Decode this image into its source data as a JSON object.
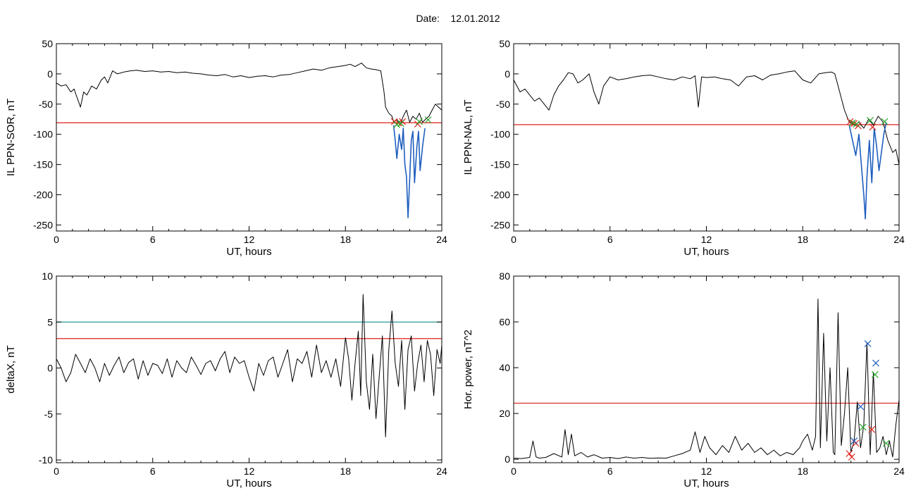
{
  "figure": {
    "date_label": "Date:",
    "date_value": "12.01.2012"
  },
  "chart_data": [
    {
      "id": "p1",
      "type": "line",
      "title": "",
      "xlabel": "UT, hours",
      "ylabel": "IL PPN-SOR, nT",
      "xlim": [
        0,
        24
      ],
      "ylim": [
        -260,
        50
      ],
      "xticks": [
        0,
        6,
        12,
        18,
        24
      ],
      "yticks": [
        50,
        0,
        -50,
        -100,
        -150,
        -200,
        -250
      ],
      "grid": false,
      "hlines": [
        {
          "y": -81,
          "color": "#e0201a"
        }
      ],
      "series": [
        {
          "color": "#000000",
          "x": [
            0,
            0.3,
            0.6,
            0.9,
            1.1,
            1.3,
            1.5,
            1.7,
            1.9,
            2.2,
            2.5,
            2.8,
            3.0,
            3.2,
            3.5,
            3.8,
            4.2,
            4.6,
            5.0,
            5.5,
            6.0,
            6.5,
            7.0,
            7.5,
            8.0,
            8.5,
            9.0,
            9.5,
            10.0,
            10.5,
            11.0,
            11.5,
            12.0,
            12.5,
            13.0,
            13.5,
            14.0,
            14.5,
            15.0,
            15.5,
            16.0,
            16.5,
            17.0,
            17.5,
            18.0,
            18.3,
            18.6,
            19.0,
            19.3,
            19.6,
            19.9,
            20.2,
            20.4,
            20.5,
            20.7,
            20.9,
            21.0,
            21.2,
            21.4,
            21.6,
            21.8,
            22.0,
            22.2,
            22.4,
            22.6,
            22.8,
            23.0,
            23.2,
            23.4,
            23.6,
            23.8,
            24.0
          ],
          "y": [
            -15,
            -20,
            -18,
            -30,
            -25,
            -40,
            -55,
            -30,
            -35,
            -20,
            -25,
            -10,
            -5,
            -15,
            5,
            0,
            3,
            5,
            6,
            4,
            5,
            3,
            4,
            2,
            3,
            1,
            0,
            -2,
            -3,
            -1,
            -5,
            -3,
            -6,
            -4,
            -3,
            -5,
            -2,
            -1,
            2,
            5,
            8,
            6,
            10,
            12,
            14,
            16,
            12,
            18,
            10,
            8,
            7,
            5,
            -30,
            -55,
            -65,
            -70,
            -80,
            -75,
            -85,
            -70,
            -60,
            -80,
            -70,
            -75,
            -65,
            -80,
            -75,
            -70,
            -60,
            -50,
            -55,
            -60
          ]
        },
        {
          "color": "#1f5fbf",
          "x": [
            21.0,
            21.1,
            21.2,
            21.35,
            21.5,
            21.6,
            21.7,
            21.8,
            21.9,
            22.0,
            22.1,
            22.2,
            22.3,
            22.45,
            22.55,
            22.65,
            22.8,
            22.95
          ],
          "y": [
            -85,
            -110,
            -140,
            -100,
            -125,
            -90,
            -150,
            -170,
            -238,
            -175,
            -110,
            -95,
            -180,
            -120,
            -95,
            -160,
            -120,
            -90
          ]
        }
      ],
      "markers": [
        {
          "x": 21.05,
          "y": -79,
          "color": "#e0201a"
        },
        {
          "x": 21.3,
          "y": -81,
          "color": "#e0201a"
        },
        {
          "x": 21.55,
          "y": -79,
          "color": "#e0201a"
        },
        {
          "x": 22.5,
          "y": -83,
          "color": "#e0201a"
        },
        {
          "x": 21.2,
          "y": -84,
          "color": "#2aa52a"
        },
        {
          "x": 21.45,
          "y": -82,
          "color": "#2aa52a"
        },
        {
          "x": 22.6,
          "y": -79,
          "color": "#2aa52a"
        },
        {
          "x": 23.15,
          "y": -76,
          "color": "#2aa52a"
        }
      ]
    },
    {
      "id": "p2",
      "type": "line",
      "title": "",
      "xlabel": "UT, hours",
      "ylabel": "IL PPN-NAL, nT",
      "xlim": [
        0,
        24
      ],
      "ylim": [
        -260,
        50
      ],
      "xticks": [
        0,
        6,
        12,
        18,
        24
      ],
      "yticks": [
        50,
        0,
        -50,
        -100,
        -150,
        -200,
        -250
      ],
      "grid": false,
      "hlines": [
        {
          "y": -84,
          "color": "#e0201a"
        }
      ],
      "series": [
        {
          "color": "#000000",
          "x": [
            0,
            0.2,
            0.4,
            0.7,
            1.0,
            1.3,
            1.6,
            1.9,
            2.2,
            2.5,
            2.8,
            3.1,
            3.4,
            3.7,
            4.0,
            4.3,
            4.7,
            5.0,
            5.3,
            5.6,
            6.0,
            6.5,
            7.0,
            7.5,
            8.0,
            8.5,
            9.0,
            9.5,
            10.0,
            10.5,
            11.0,
            11.3,
            11.5,
            11.7,
            12.0,
            12.5,
            13.0,
            13.5,
            14.0,
            14.5,
            15.0,
            15.5,
            16.0,
            16.5,
            17.0,
            17.5,
            18.0,
            18.5,
            19.0,
            19.4,
            19.8,
            20.0,
            20.3,
            20.6,
            20.9,
            21.2,
            21.5,
            21.8,
            22.1,
            22.4,
            22.7,
            23.0,
            23.3,
            23.6,
            23.8,
            24.0
          ],
          "y": [
            -10,
            -20,
            -30,
            -25,
            -35,
            -45,
            -40,
            -50,
            -60,
            -35,
            -20,
            -10,
            2,
            0,
            -15,
            -10,
            0,
            -30,
            -50,
            -20,
            -5,
            -10,
            -8,
            -5,
            -3,
            -2,
            -5,
            -8,
            -10,
            -5,
            -8,
            -3,
            -55,
            -5,
            -6,
            -5,
            -8,
            -10,
            -20,
            -5,
            -3,
            -10,
            -2,
            0,
            3,
            5,
            -10,
            -15,
            0,
            2,
            3,
            0,
            -30,
            -60,
            -80,
            -85,
            -80,
            -90,
            -75,
            -85,
            -70,
            -80,
            -110,
            -130,
            -125,
            -150
          ]
        },
        {
          "color": "#1f5fbf",
          "x": [
            20.9,
            21.1,
            21.3,
            21.5,
            21.65,
            21.8,
            21.9,
            22.0,
            22.15,
            22.3,
            22.45,
            22.6,
            22.75,
            22.9,
            23.05,
            23.2
          ],
          "y": [
            -85,
            -110,
            -135,
            -100,
            -150,
            -200,
            -240,
            -170,
            -110,
            -180,
            -90,
            -120,
            -160,
            -130,
            -100,
            -80
          ]
        }
      ],
      "markers": [
        {
          "x": 20.95,
          "y": -79,
          "color": "#e0201a"
        },
        {
          "x": 21.2,
          "y": -82,
          "color": "#e0201a"
        },
        {
          "x": 21.45,
          "y": -86,
          "color": "#e0201a"
        },
        {
          "x": 22.35,
          "y": -88,
          "color": "#e0201a"
        },
        {
          "x": 21.1,
          "y": -81,
          "color": "#2aa52a"
        },
        {
          "x": 21.35,
          "y": -83,
          "color": "#2aa52a"
        },
        {
          "x": 22.2,
          "y": -77,
          "color": "#2aa52a"
        },
        {
          "x": 23.1,
          "y": -79,
          "color": "#2aa52a"
        }
      ]
    },
    {
      "id": "p3",
      "type": "line",
      "title": "",
      "xlabel": "UT, hours",
      "ylabel": "deltaX, nT",
      "xlim": [
        0,
        24
      ],
      "ylim": [
        -10.3,
        10
      ],
      "xticks": [
        0,
        6,
        12,
        18,
        24
      ],
      "yticks": [
        10,
        5,
        0,
        -5,
        -10
      ],
      "grid": false,
      "hlines": [
        {
          "y": 5.0,
          "color": "#2a9a9a"
        },
        {
          "y": 3.2,
          "color": "#e0201a"
        }
      ],
      "series": [
        {
          "color": "#000000",
          "x": [
            0,
            0.3,
            0.6,
            0.9,
            1.2,
            1.5,
            1.8,
            2.1,
            2.4,
            2.7,
            3.0,
            3.3,
            3.6,
            3.9,
            4.2,
            4.5,
            4.8,
            5.1,
            5.4,
            5.7,
            6.0,
            6.3,
            6.6,
            6.9,
            7.2,
            7.5,
            7.8,
            8.1,
            8.4,
            8.7,
            9.0,
            9.3,
            9.6,
            9.9,
            10.2,
            10.5,
            10.8,
            11.1,
            11.4,
            11.7,
            12.0,
            12.3,
            12.6,
            12.9,
            13.2,
            13.5,
            13.8,
            14.1,
            14.4,
            14.7,
            15.0,
            15.3,
            15.6,
            15.9,
            16.2,
            16.5,
            16.8,
            17.1,
            17.4,
            17.7,
            18.0,
            18.2,
            18.4,
            18.6,
            18.8,
            18.95,
            19.1,
            19.3,
            19.5,
            19.7,
            19.9,
            20.1,
            20.3,
            20.5,
            20.7,
            20.9,
            21.1,
            21.3,
            21.5,
            21.7,
            21.9,
            22.1,
            22.3,
            22.5,
            22.7,
            22.9,
            23.1,
            23.3,
            23.5,
            23.7,
            23.9,
            24.0
          ],
          "y": [
            1.0,
            0,
            -1.5,
            -0.5,
            1.5,
            0.5,
            -0.5,
            1.0,
            0,
            -1.5,
            0.5,
            -0.8,
            0.3,
            1.2,
            -0.5,
            0.6,
            1.0,
            -1.2,
            0.8,
            -0.8,
            0.5,
            0.3,
            -0.6,
            1.0,
            -1.0,
            0.8,
            0,
            -0.5,
            1.2,
            0.3,
            -0.7,
            0.5,
            0.8,
            -0.3,
            1.0,
            1.8,
            -0.5,
            1.2,
            0.5,
            0.8,
            -1.0,
            -2.5,
            0.5,
            -0.8,
            0.8,
            1.2,
            -1.0,
            0.5,
            2.0,
            -1.5,
            1.0,
            0.5,
            1.8,
            -1.0,
            2.5,
            -0.5,
            0.8,
            -1.0,
            1.0,
            -2.0,
            3.3,
            1.0,
            -3.5,
            0.5,
            4.0,
            -3.0,
            8.0,
            -1.5,
            -4.5,
            1.5,
            -5.5,
            -1.0,
            3.5,
            -7.5,
            2.0,
            6.2,
            0.5,
            -2.0,
            3.0,
            -4.5,
            2.0,
            3.5,
            -2.5,
            0.5,
            2.5,
            -1.5,
            3.0,
            1.5,
            -3.0,
            2.0,
            0.5,
            2.5
          ]
        }
      ],
      "markers": []
    },
    {
      "id": "p4",
      "type": "line",
      "title": "",
      "xlabel": "UT, hours",
      "ylabel": "Hor. power, nT^2",
      "xlim": [
        0,
        24
      ],
      "ylim": [
        -1.5,
        80
      ],
      "xticks": [
        0,
        6,
        12,
        18,
        24
      ],
      "yticks": [
        80,
        60,
        40,
        20,
        0
      ],
      "grid": false,
      "hlines": [
        {
          "y": 24.5,
          "color": "#e0201a"
        }
      ],
      "series": [
        {
          "color": "#000000",
          "x": [
            0,
            0.5,
            1.0,
            1.2,
            1.4,
            1.6,
            2.0,
            2.5,
            3.0,
            3.2,
            3.4,
            3.6,
            3.8,
            4.2,
            4.6,
            5.0,
            5.5,
            6.0,
            6.5,
            7.0,
            7.5,
            8.0,
            8.5,
            9.0,
            9.5,
            10.0,
            10.5,
            11.0,
            11.3,
            11.6,
            11.9,
            12.2,
            12.6,
            13.0,
            13.4,
            13.8,
            14.2,
            14.6,
            15.0,
            15.4,
            15.8,
            16.2,
            16.6,
            17.0,
            17.4,
            17.8,
            18.0,
            18.3,
            18.6,
            18.8,
            18.95,
            19.1,
            19.3,
            19.5,
            19.7,
            19.9,
            20.0,
            20.2,
            20.4,
            20.6,
            20.8,
            21.0,
            21.2,
            21.4,
            21.6,
            21.8,
            22.0,
            22.2,
            22.4,
            22.6,
            22.8,
            23.0,
            23.2,
            23.4,
            23.6,
            23.8,
            24.0
          ],
          "y": [
            0.5,
            0.3,
            0.8,
            8.0,
            1.0,
            0.5,
            0.8,
            2.5,
            1.0,
            13.0,
            2.0,
            11.0,
            1.5,
            3.0,
            1.0,
            2.0,
            0.5,
            0.8,
            0.3,
            1.0,
            0.5,
            0.8,
            0.4,
            0.6,
            0.5,
            1.5,
            2.5,
            4.0,
            12.0,
            3.0,
            10.0,
            5.0,
            2.0,
            6.0,
            3.0,
            10.0,
            4.0,
            7.0,
            3.0,
            5.0,
            2.0,
            4.0,
            1.5,
            3.0,
            2.0,
            5.0,
            8.0,
            11.0,
            4.0,
            10.0,
            70.0,
            5.0,
            55.0,
            8.0,
            40.0,
            3.0,
            2.0,
            64.0,
            6.0,
            20.0,
            40.0,
            3.0,
            8.0,
            25.0,
            5.0,
            15.0,
            51.0,
            2.0,
            38.0,
            3.0,
            5.0,
            10.0,
            2.0,
            8.0,
            1.0,
            15.0,
            26.0
          ]
        }
      ],
      "markers": [
        {
          "x": 20.9,
          "y": 2.5,
          "color": "#e0201a"
        },
        {
          "x": 21.05,
          "y": 1.0,
          "color": "#e0201a"
        },
        {
          "x": 21.3,
          "y": 7.0,
          "color": "#e0201a"
        },
        {
          "x": 22.3,
          "y": 13.0,
          "color": "#e0201a"
        },
        {
          "x": 21.2,
          "y": 8.0,
          "color": "#1f5fbf"
        },
        {
          "x": 21.6,
          "y": 23.0,
          "color": "#1f5fbf"
        },
        {
          "x": 22.05,
          "y": 50.5,
          "color": "#1f5fbf"
        },
        {
          "x": 22.55,
          "y": 42.0,
          "color": "#1f5fbf"
        },
        {
          "x": 21.75,
          "y": 14.0,
          "color": "#2aa52a"
        },
        {
          "x": 22.5,
          "y": 37.0,
          "color": "#2aa52a"
        },
        {
          "x": 23.2,
          "y": 7.0,
          "color": "#2aa52a"
        }
      ]
    }
  ]
}
